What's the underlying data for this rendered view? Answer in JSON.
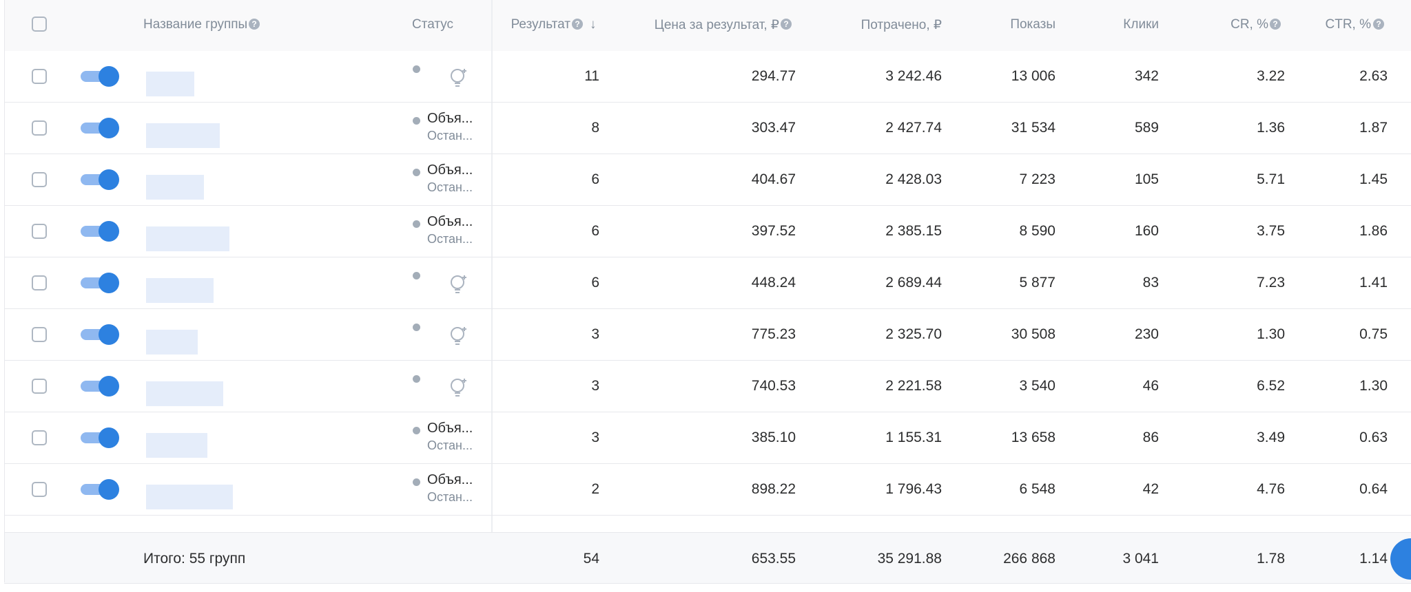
{
  "table": {
    "columns": [
      "Название группы",
      "Статус",
      "Результат",
      "Цена за результат, ₽",
      "Потрачено, ₽",
      "Показы",
      "Клики",
      "CR, %",
      "CTR, %"
    ],
    "rows": [
      {
        "values": [
          "11",
          "294.77",
          "3 242.46",
          "13 006",
          "342",
          "3.22",
          "2.63"
        ]
      },
      {
        "status": [
          "Объя...",
          "Остан..."
        ],
        "values": [
          "8",
          "303.47",
          "2 427.74",
          "31 534",
          "589",
          "1.36",
          "1.87"
        ]
      },
      {
        "status": [
          "Объя...",
          "Остан..."
        ],
        "values": [
          "6",
          "404.67",
          "2 428.03",
          "7 223",
          "105",
          "5.71",
          "1.45"
        ]
      },
      {
        "status": [
          "Объя...",
          "Остан..."
        ],
        "values": [
          "6",
          "397.52",
          "2 385.15",
          "8 590",
          "160",
          "3.75",
          "1.86"
        ]
      },
      {
        "values": [
          "6",
          "448.24",
          "2 689.44",
          "5 877",
          "83",
          "7.23",
          "1.41"
        ]
      },
      {
        "values": [
          "3",
          "775.23",
          "2 325.70",
          "30 508",
          "230",
          "1.30",
          "0.75"
        ]
      },
      {
        "values": [
          "3",
          "740.53",
          "2 221.58",
          "3 540",
          "46",
          "6.52",
          "1.30"
        ]
      },
      {
        "status": [
          "Объя...",
          "Остан..."
        ],
        "values": [
          "3",
          "385.10",
          "1 155.31",
          "13 658",
          "86",
          "3.49",
          "0.63"
        ]
      },
      {
        "status": [
          "Объя...",
          "Остан..."
        ],
        "values": [
          "2",
          "898.22",
          "1 796.43",
          "6 548",
          "42",
          "4.76",
          "0.64"
        ]
      }
    ],
    "footer": {
      "label": "Итого: 55 групп",
      "values": [
        "54",
        "653.55",
        "35 291.88",
        "266 868",
        "3 041",
        "1.78",
        "1.14"
      ]
    }
  }
}
